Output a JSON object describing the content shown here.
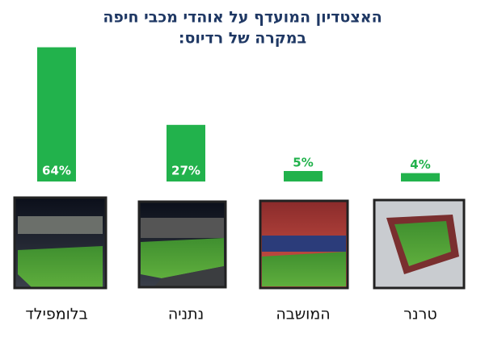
{
  "chart_data": {
    "type": "bar",
    "title": "האצטדיון המועדף על אוהדי מכבי חיפה",
    "subtitle": "במקרה של רדיוס:",
    "categories": [
      "בלומפילד",
      "נתניה",
      "המושבה",
      "טרנר"
    ],
    "values": [
      64,
      27,
      5,
      4
    ],
    "value_labels": [
      "64%",
      "27%",
      "5%",
      "4%"
    ],
    "color": "#22b24c"
  }
}
